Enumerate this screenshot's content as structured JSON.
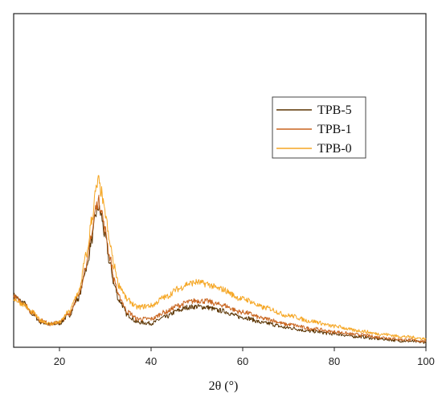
{
  "chart_data": {
    "type": "line",
    "title": "",
    "xlabel": "2θ (°)",
    "ylabel": "",
    "xlim": [
      10,
      100
    ],
    "ylim": [
      0,
      100
    ],
    "xticks": [
      20,
      40,
      60,
      80,
      100
    ],
    "y_tick_labels_shown": false,
    "grid": false,
    "legend_placement": "upper-right",
    "series": [
      {
        "name": "TPB-5",
        "color": "#5a3300",
        "points": [
          [
            10,
            15.5
          ],
          [
            12,
            13.5
          ],
          [
            14,
            10.0
          ],
          [
            16,
            7.5
          ],
          [
            18,
            6.8
          ],
          [
            20,
            7.2
          ],
          [
            22,
            9.5
          ],
          [
            24,
            14.5
          ],
          [
            26,
            24.0
          ],
          [
            27,
            32.0
          ],
          [
            28,
            40.0
          ],
          [
            28.5,
            42.0
          ],
          [
            29,
            40.0
          ],
          [
            30,
            33.0
          ],
          [
            31,
            25.0
          ],
          [
            32,
            18.5
          ],
          [
            33,
            14.0
          ],
          [
            35,
            9.5
          ],
          [
            37,
            7.5
          ],
          [
            40,
            7.2
          ],
          [
            43,
            9.0
          ],
          [
            46,
            11.0
          ],
          [
            48,
            12.0
          ],
          [
            50,
            12.2
          ],
          [
            52,
            12.0
          ],
          [
            55,
            11.0
          ],
          [
            60,
            9.0
          ],
          [
            65,
            7.2
          ],
          [
            70,
            5.8
          ],
          [
            75,
            4.8
          ],
          [
            80,
            4.0
          ],
          [
            85,
            3.2
          ],
          [
            90,
            2.5
          ],
          [
            95,
            1.9
          ],
          [
            100,
            1.5
          ]
        ]
      },
      {
        "name": "TPB-1",
        "color": "#c8641e",
        "points": [
          [
            10,
            15.0
          ],
          [
            12,
            13.5
          ],
          [
            14,
            10.5
          ],
          [
            16,
            8.0
          ],
          [
            18,
            7.0
          ],
          [
            20,
            7.5
          ],
          [
            22,
            10.0
          ],
          [
            24,
            15.0
          ],
          [
            26,
            25.0
          ],
          [
            27,
            34.0
          ],
          [
            28,
            42.0
          ],
          [
            28.5,
            44.0
          ],
          [
            29,
            42.0
          ],
          [
            30,
            35.0
          ],
          [
            31,
            27.0
          ],
          [
            32,
            20.0
          ],
          [
            33,
            15.0
          ],
          [
            35,
            10.5
          ],
          [
            37,
            8.5
          ],
          [
            40,
            8.5
          ],
          [
            43,
            10.5
          ],
          [
            46,
            12.5
          ],
          [
            48,
            13.5
          ],
          [
            50,
            14.0
          ],
          [
            52,
            13.8
          ],
          [
            55,
            12.8
          ],
          [
            60,
            10.5
          ],
          [
            65,
            8.5
          ],
          [
            70,
            6.8
          ],
          [
            75,
            5.6
          ],
          [
            80,
            4.6
          ],
          [
            85,
            3.8
          ],
          [
            90,
            3.0
          ],
          [
            95,
            2.3
          ],
          [
            100,
            1.8
          ]
        ]
      },
      {
        "name": "TPB-0",
        "color": "#f5a623",
        "points": [
          [
            10,
            14.5
          ],
          [
            12,
            13.0
          ],
          [
            14,
            10.5
          ],
          [
            16,
            8.0
          ],
          [
            18,
            7.0
          ],
          [
            20,
            7.5
          ],
          [
            22,
            10.5
          ],
          [
            24,
            16.0
          ],
          [
            26,
            28.0
          ],
          [
            27,
            38.0
          ],
          [
            28,
            47.0
          ],
          [
            28.5,
            50.0
          ],
          [
            29,
            47.0
          ],
          [
            30,
            40.0
          ],
          [
            31,
            31.0
          ],
          [
            32,
            24.0
          ],
          [
            33,
            18.5
          ],
          [
            35,
            14.0
          ],
          [
            37,
            12.0
          ],
          [
            40,
            12.5
          ],
          [
            43,
            15.0
          ],
          [
            46,
            17.5
          ],
          [
            48,
            19.0
          ],
          [
            50,
            19.5
          ],
          [
            52,
            19.0
          ],
          [
            55,
            17.5
          ],
          [
            60,
            14.5
          ],
          [
            65,
            11.8
          ],
          [
            70,
            9.5
          ],
          [
            75,
            7.8
          ],
          [
            80,
            6.3
          ],
          [
            85,
            5.0
          ],
          [
            90,
            4.0
          ],
          [
            95,
            3.2
          ],
          [
            100,
            2.6
          ]
        ]
      }
    ]
  }
}
